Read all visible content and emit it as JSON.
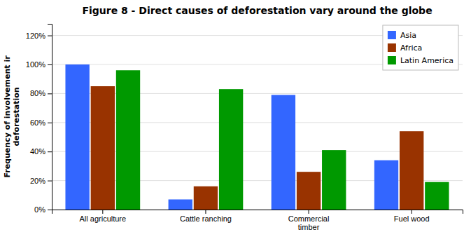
{
  "chart_data": {
    "type": "bar",
    "title": "Figure 8 - Direct causes of deforestation vary around the globe",
    "ylabel": "Frequency of involvement ir\ndeforestation",
    "categories": [
      "All agriculture",
      "Cattle ranching",
      "Commercial\ntimber",
      "Fuel wood"
    ],
    "series": [
      {
        "name": "Asia",
        "color": "#3366FF",
        "values": [
          1.0,
          0.07,
          0.79,
          0.34
        ]
      },
      {
        "name": "Africa",
        "color": "#993300",
        "values": [
          0.85,
          0.16,
          0.26,
          0.54
        ]
      },
      {
        "name": "Latin America",
        "color": "#009900",
        "values": [
          0.96,
          0.83,
          0.41,
          0.19
        ]
      }
    ],
    "ylim": [
      0,
      1.28
    ],
    "yticks": [
      {
        "value": 0,
        "label": "0%"
      },
      {
        "value": 0.2,
        "label": "20%"
      },
      {
        "value": 0.4,
        "label": "40%"
      },
      {
        "value": 0.6,
        "label": "60%"
      },
      {
        "value": 0.8,
        "label": "80%"
      },
      {
        "value": 1.0,
        "label": "100%"
      },
      {
        "value": 1.2,
        "label": "120%"
      }
    ],
    "grid": true,
    "legend": "upper right"
  }
}
